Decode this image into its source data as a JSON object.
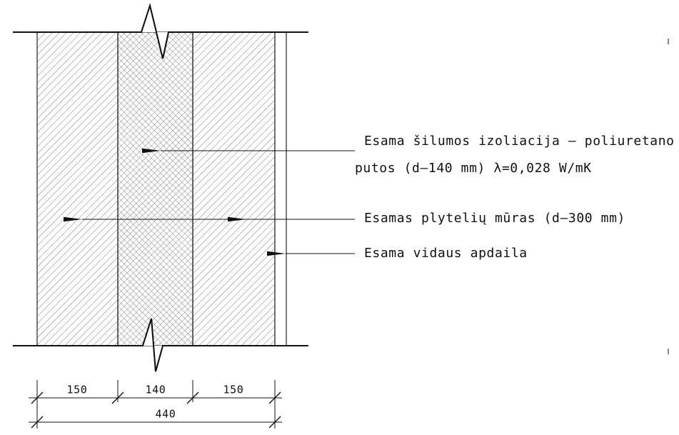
{
  "labels": {
    "insulation_line1": "Esama šilumos izoliacija – poliuretano",
    "insulation_line2": "putos (d–140 mm) λ=0,028 W/mK",
    "brick": "Esamas plytelių mūras (d–300 mm)",
    "finish": "Esama vidaus apdaila"
  },
  "dimensions": {
    "segments": [
      "150",
      "140",
      "150"
    ],
    "total": "440"
  }
}
